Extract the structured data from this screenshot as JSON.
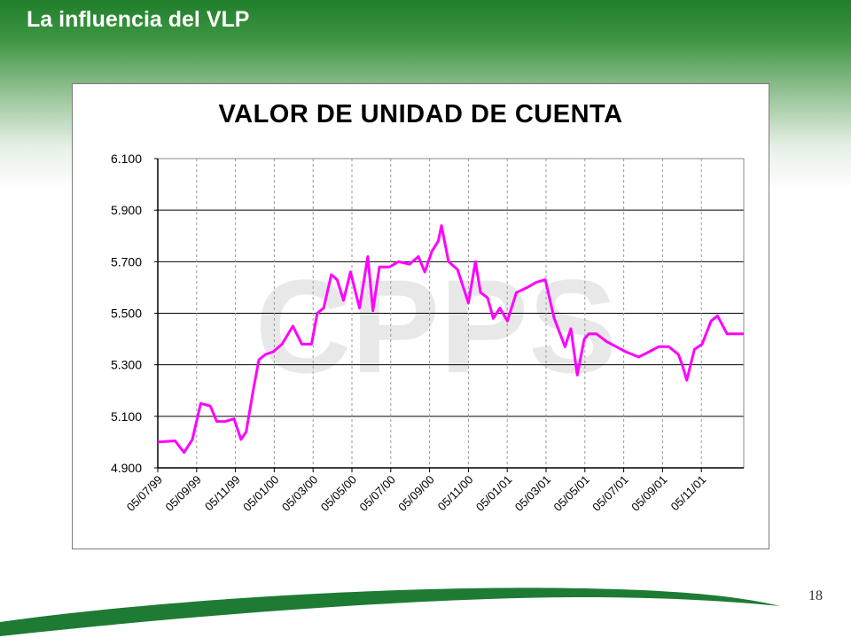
{
  "slide": {
    "title": "La influencia del VLP",
    "page_number": "18",
    "watermark_text": "CPPS"
  },
  "colors": {
    "header_green": "#1f7f2a",
    "series_color": "#ff00ff",
    "swoosh_green": "#1e7b34"
  },
  "chart_data": {
    "type": "line",
    "title": "VALOR DE UNIDAD DE CUENTA",
    "xlabel": "",
    "ylabel": "",
    "ylim": [
      4900,
      6100
    ],
    "yticks": [
      4900,
      5100,
      5300,
      5500,
      5700,
      5900,
      6100
    ],
    "ytick_labels": [
      "4.900",
      "5.100",
      "5.300",
      "5.500",
      "5.700",
      "5.900",
      "6.100"
    ],
    "xtick_labels": [
      "05/07/99",
      "05/09/99",
      "05/11/99",
      "05/01/00",
      "05/03/00",
      "05/05/00",
      "05/07/00",
      "05/09/00",
      "05/11/00",
      "05/01/01",
      "05/03/01",
      "05/05/01",
      "05/07/01",
      "05/09/01",
      "05/11/01"
    ],
    "x_range": [
      "1999-07-05",
      "2002-01-05"
    ],
    "grid": {
      "horizontal": "solid",
      "vertical": "dashed"
    },
    "legend": "none",
    "series": [
      {
        "x": [
          "1999-07-05",
          "1999-08-01",
          "1999-08-15",
          "1999-08-28",
          "1999-09-10",
          "1999-09-25",
          "1999-10-05",
          "1999-10-18",
          "1999-11-01",
          "1999-11-12",
          "1999-11-20",
          "1999-12-01",
          "1999-12-10",
          "1999-12-20",
          "2000-01-01",
          "2000-01-15",
          "2000-02-01",
          "2000-02-15",
          "2000-03-01",
          "2000-03-10",
          "2000-03-20",
          "2000-04-01",
          "2000-04-10",
          "2000-04-20",
          "2000-05-01",
          "2000-05-15",
          "2000-05-28",
          "2000-06-05",
          "2000-06-15",
          "2000-07-01",
          "2000-07-15",
          "2000-08-01",
          "2000-08-15",
          "2000-08-25",
          "2000-09-05",
          "2000-09-15",
          "2000-09-20",
          "2000-10-01",
          "2000-10-15",
          "2000-11-01",
          "2000-11-12",
          "2000-11-20",
          "2000-12-01",
          "2000-12-10",
          "2000-12-20",
          "2001-01-01",
          "2001-01-15",
          "2001-02-01",
          "2001-02-15",
          "2001-03-01",
          "2001-03-15",
          "2001-04-01",
          "2001-04-10",
          "2001-04-20",
          "2001-05-01",
          "2001-05-08",
          "2001-05-20",
          "2001-06-05",
          "2001-06-20",
          "2001-07-05",
          "2001-07-25",
          "2001-08-10",
          "2001-08-25",
          "2001-09-10",
          "2001-09-25",
          "2001-10-01",
          "2001-10-08",
          "2001-10-20",
          "2001-11-01",
          "2001-11-15",
          "2001-11-25",
          "2001-12-10",
          "2002-01-05"
        ],
        "values": [
          5000,
          5005,
          4960,
          5010,
          5150,
          5140,
          5080,
          5080,
          5090,
          5010,
          5040,
          5200,
          5320,
          5340,
          5350,
          5380,
          5450,
          5380,
          5380,
          5500,
          5520,
          5650,
          5630,
          5550,
          5660,
          5520,
          5720,
          5510,
          5680,
          5680,
          5700,
          5690,
          5720,
          5660,
          5740,
          5780,
          5840,
          5700,
          5670,
          5540,
          5700,
          5580,
          5560,
          5480,
          5520,
          5470,
          5580,
          5600,
          5620,
          5630,
          5480,
          5370,
          5440,
          5260,
          5400,
          5420,
          5420,
          5390,
          5370,
          5350,
          5330,
          5350,
          5370,
          5370,
          5340,
          5300,
          5240,
          5360,
          5380,
          5470,
          5490,
          5420,
          5420
        ]
      }
    ]
  }
}
